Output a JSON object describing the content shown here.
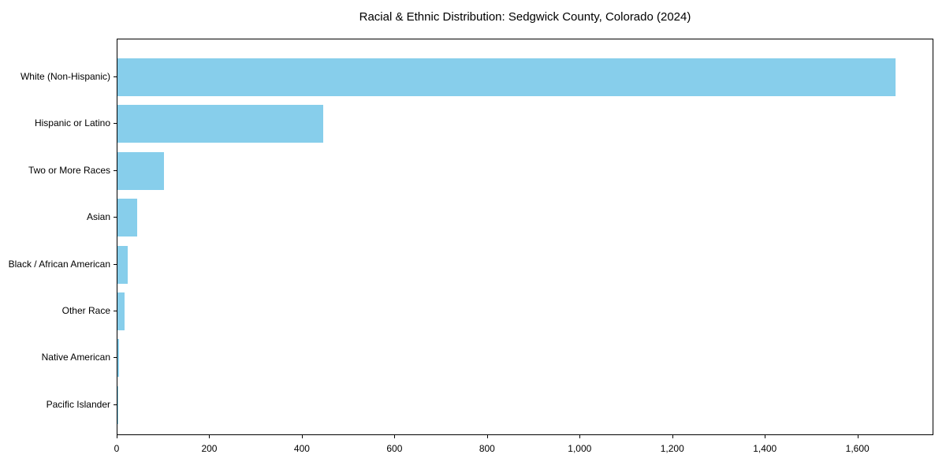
{
  "chart_data": {
    "type": "bar",
    "orientation": "horizontal",
    "title": "Racial & Ethnic Distribution: Sedgwick County, Colorado (2024)",
    "categories": [
      "White (Non-Hispanic)",
      "Hispanic or Latino",
      "Two or More Races",
      "Asian",
      "Black / African American",
      "Other Race",
      "Native American",
      "Pacific Islander"
    ],
    "values": [
      1680,
      445,
      100,
      42,
      22,
      15,
      3,
      1
    ],
    "xlabel": "",
    "ylabel": "",
    "xlim": [
      0,
      1764
    ],
    "x_ticks": [
      0,
      200,
      400,
      600,
      800,
      1000,
      1200,
      1400,
      1600
    ],
    "x_tick_labels": [
      "0",
      "200",
      "400",
      "600",
      "800",
      "1,000",
      "1,200",
      "1,400",
      "1,600"
    ],
    "bar_color": "#87CEEB",
    "axis_color": "#000000",
    "text_color": "#000000",
    "grid": false,
    "legend": null
  }
}
